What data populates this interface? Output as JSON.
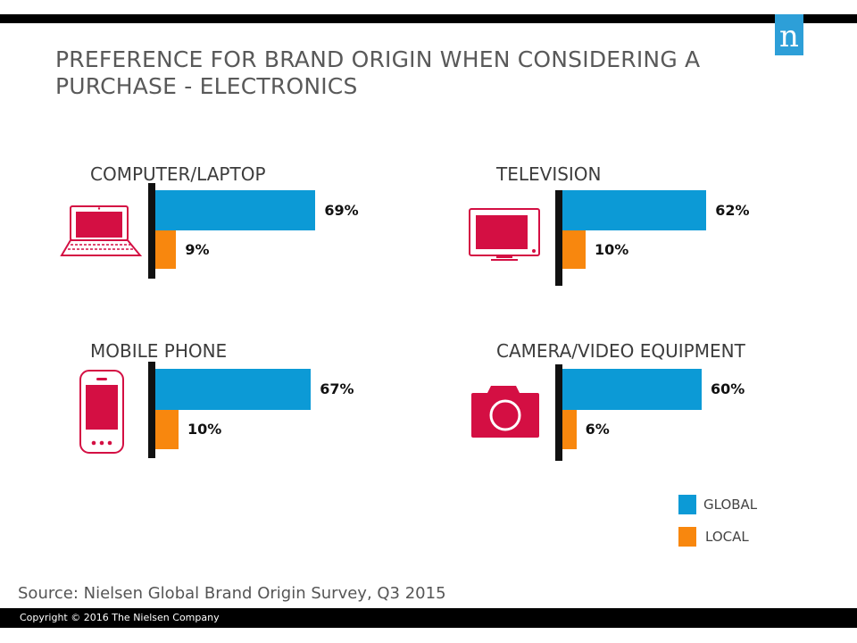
{
  "title": "PREFERENCE FOR BRAND ORIGIN WHEN CONSIDERING A PURCHASE - ELECTRONICS",
  "logo_text": "n",
  "colors": {
    "global": "#0c9ad6",
    "local": "#f8870e",
    "icon": "#d40f43"
  },
  "chart_data": [
    {
      "type": "bar",
      "title": "COMPUTER/LAPTOP",
      "icon": "laptop-icon",
      "categories": [
        "GLOBAL",
        "LOCAL"
      ],
      "values": [
        69,
        9
      ],
      "labels": [
        "69%",
        "9%"
      ]
    },
    {
      "type": "bar",
      "title": "TELEVISION",
      "icon": "tv-icon",
      "categories": [
        "GLOBAL",
        "LOCAL"
      ],
      "values": [
        62,
        10
      ],
      "labels": [
        "62%",
        "10%"
      ]
    },
    {
      "type": "bar",
      "title": "MOBILE PHONE",
      "icon": "phone-icon",
      "categories": [
        "GLOBAL",
        "LOCAL"
      ],
      "values": [
        67,
        10
      ],
      "labels": [
        "67%",
        "10%"
      ]
    },
    {
      "type": "bar",
      "title": "CAMERA/VIDEO EQUIPMENT",
      "icon": "camera-icon",
      "categories": [
        "GLOBAL",
        "LOCAL"
      ],
      "values": [
        60,
        6
      ],
      "labels": [
        "60%",
        "6%"
      ]
    }
  ],
  "legend": [
    {
      "label": "GLOBAL",
      "color": "#0c9ad6"
    },
    {
      "label": "LOCAL",
      "color": "#f8870e"
    }
  ],
  "source": "Source:  Nielsen Global Brand Origin Survey, Q3 2015",
  "copyright": "Copyright © 2016 The Nielsen Company"
}
